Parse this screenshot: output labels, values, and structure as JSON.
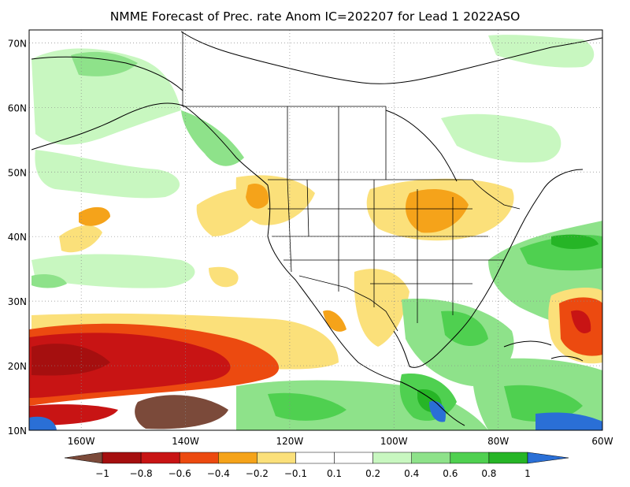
{
  "title": "NMME Forecast of Prec. rate Anom IC=202207 for Lead 1 2022ASO",
  "map": {
    "lon_range": [
      -170,
      -60
    ],
    "lat_range": [
      10,
      72
    ],
    "lat_labels": [
      "10N",
      "20N",
      "30N",
      "40N",
      "50N",
      "60N",
      "70N"
    ],
    "lon_labels": [
      "160W",
      "140W",
      "120W",
      "100W",
      "80W",
      "60W"
    ],
    "grid": true
  },
  "legend": {
    "colors": [
      "#7b4a3a",
      "#a50f0f",
      "#c81414",
      "#ec4a10",
      "#f5a31a",
      "#fbe07a",
      "#ffffff",
      "#ffffff",
      "#c8f7c0",
      "#8ee28a",
      "#4fd050",
      "#26b526",
      "#0b8f0b",
      "#2a6fd6"
    ],
    "labels": [
      "−1",
      "−0.8",
      "−0.6",
      "−0.4",
      "−0.2",
      "−0.1",
      "0.1",
      "0.2",
      "0.4",
      "0.6",
      "0.8",
      "1"
    ]
  }
}
